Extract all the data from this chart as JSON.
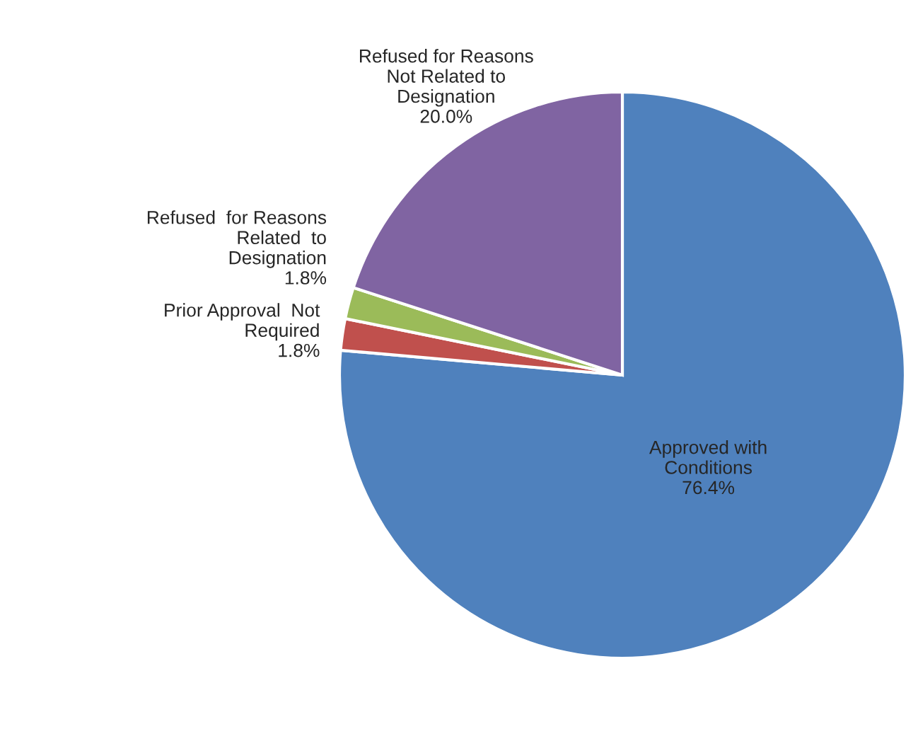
{
  "chart_data": {
    "type": "pie",
    "categories": [
      "Approved with\nConditions",
      "Prior Approval  Not\nRequired",
      "Refused  for Reasons\nRelated  to\nDesignation",
      "Refused for Reasons\nNot Related to\nDesignation"
    ],
    "values": [
      76.4,
      1.8,
      1.8,
      20.0
    ],
    "colors": [
      "#4f81bd",
      "#c0504d",
      "#9bbb59",
      "#8064a2"
    ],
    "value_labels": [
      "76.4%",
      "1.8%",
      "1.8%",
      "20.0%"
    ]
  }
}
